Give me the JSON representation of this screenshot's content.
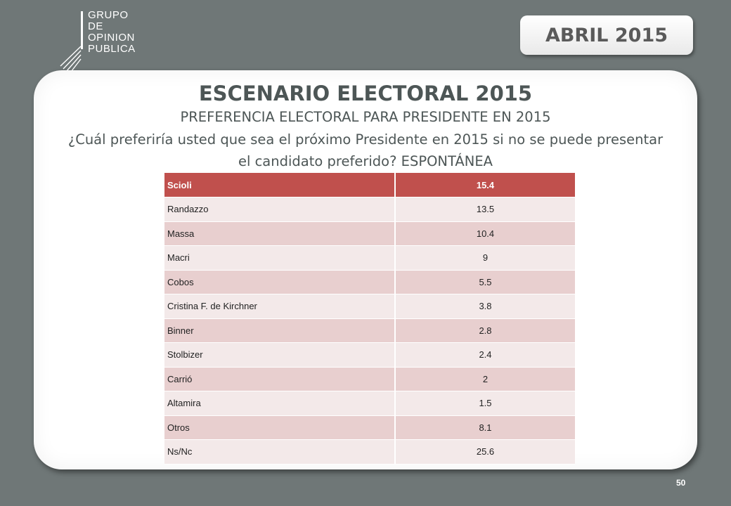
{
  "logo": {
    "lines": [
      "GRUPO",
      "DE",
      "OPINION",
      "PUBLICA"
    ]
  },
  "date_badge": "ABRIL 2015",
  "title": "ESCENARIO ELECTORAL 2015",
  "subtitle": "PREFERENCIA ELECTORAL PARA PRESIDENTE EN 2015",
  "question": "¿Cuál preferiría usted que sea el próximo Presidente en 2015 si no se puede presentar el candidato preferido? ESPONTÁNEA",
  "table": {
    "header": {
      "name": "Scioli",
      "value": "15.4"
    },
    "rows": [
      {
        "name": "Randazzo",
        "value": "13.5"
      },
      {
        "name": "Massa",
        "value": "10.4"
      },
      {
        "name": "Macri",
        "value": "9"
      },
      {
        "name": "Cobos",
        "value": "5.5"
      },
      {
        "name": "Cristina F. de Kirchner",
        "value": "3.8"
      },
      {
        "name": "Binner",
        "value": "2.8"
      },
      {
        "name": "Stolbizer",
        "value": "2.4"
      },
      {
        "name": "Carrió",
        "value": "2"
      },
      {
        "name": "Altamira",
        "value": "1.5"
      },
      {
        "name": "Otros",
        "value": "8.1"
      },
      {
        "name": "Ns/Nc",
        "value": "25.6"
      }
    ]
  },
  "page_number": "50",
  "colors": {
    "background": "#6f7777",
    "header_row": "#c0504d",
    "row_dark": "#e8cfcf",
    "row_light": "#f3e9e9",
    "text": "#4d5656"
  }
}
